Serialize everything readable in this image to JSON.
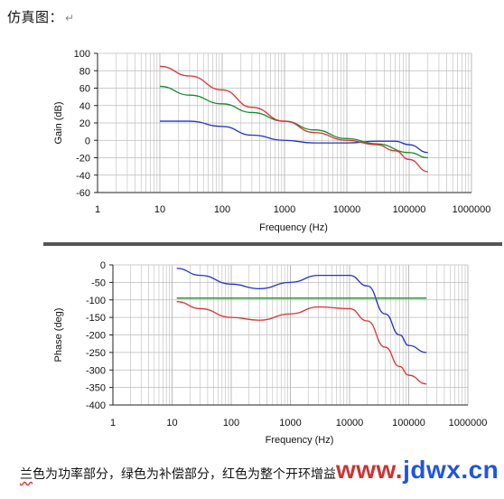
{
  "heading": {
    "text": "仿真图：",
    "return_mark": "↵"
  },
  "caption": {
    "first": "兰",
    "rest": "色为功率部分，绿色为补偿部分，红色为整个开环增益"
  },
  "watermark": {
    "www": "www.",
    "jdwx": "jdwx",
    "cn": ".cn"
  },
  "colors": {
    "blue": "#2233cc",
    "green": "#1a8a2a",
    "red": "#dd3333",
    "grid": "#bbbbbb",
    "watermark_www": "#cc3333",
    "watermark_main": "#2255dd"
  },
  "chart_data": [
    {
      "type": "line",
      "xlabel": "Frequency (Hz)",
      "ylabel": "Gain (dB)",
      "x_scale": "log",
      "xlim": [
        1,
        1000000
      ],
      "ylim": [
        -60,
        100
      ],
      "x_ticks": [
        "1",
        "10",
        "100",
        "1000",
        "10000",
        "100000",
        "1000000"
      ],
      "y_ticks": [
        "100",
        "80",
        "60",
        "40",
        "20",
        "0",
        "-20",
        "-40",
        "-60"
      ],
      "grid": true,
      "series": [
        {
          "color": "blue",
          "x": [
            10,
            30,
            100,
            300,
            1000,
            3000,
            10000,
            30000,
            60000,
            100000,
            200000
          ],
          "y": [
            22,
            22,
            16,
            6,
            0,
            -3,
            -3,
            -1,
            -1,
            -5,
            -14
          ]
        },
        {
          "color": "green",
          "x": [
            10,
            30,
            100,
            300,
            1000,
            3000,
            10000,
            30000,
            100000,
            200000
          ],
          "y": [
            62,
            52,
            42,
            32,
            22,
            12,
            2,
            -4,
            -14,
            -20
          ]
        },
        {
          "color": "red",
          "x": [
            10,
            30,
            100,
            300,
            1000,
            3000,
            10000,
            30000,
            60000,
            100000,
            200000
          ],
          "y": [
            85,
            74,
            58,
            38,
            22,
            9,
            0,
            -5,
            -12,
            -22,
            -36
          ]
        }
      ]
    },
    {
      "type": "line",
      "xlabel": "Frequency (Hz)",
      "ylabel": "Phase (deg)",
      "x_scale": "log",
      "xlim": [
        1,
        1000000
      ],
      "ylim": [
        -400,
        0
      ],
      "x_ticks": [
        "1",
        "10",
        "100",
        "1000",
        "10000",
        "100000",
        "1000000"
      ],
      "y_ticks": [
        "0",
        "-50",
        "-100",
        "-150",
        "-200",
        "-250",
        "-300",
        "-350",
        "-400"
      ],
      "grid": true,
      "series": [
        {
          "color": "blue",
          "x": [
            12,
            30,
            100,
            300,
            1000,
            3000,
            10000,
            20000,
            40000,
            70000,
            100000,
            200000
          ],
          "y": [
            -10,
            -30,
            -55,
            -68,
            -50,
            -30,
            -30,
            -60,
            -140,
            -200,
            -230,
            -250
          ]
        },
        {
          "color": "green",
          "x": [
            12,
            200000
          ],
          "y": [
            -95,
            -95
          ]
        },
        {
          "color": "red",
          "x": [
            12,
            30,
            100,
            300,
            1000,
            3000,
            10000,
            20000,
            40000,
            70000,
            100000,
            200000
          ],
          "y": [
            -105,
            -125,
            -150,
            -158,
            -140,
            -120,
            -125,
            -160,
            -235,
            -290,
            -315,
            -340
          ]
        }
      ]
    }
  ]
}
